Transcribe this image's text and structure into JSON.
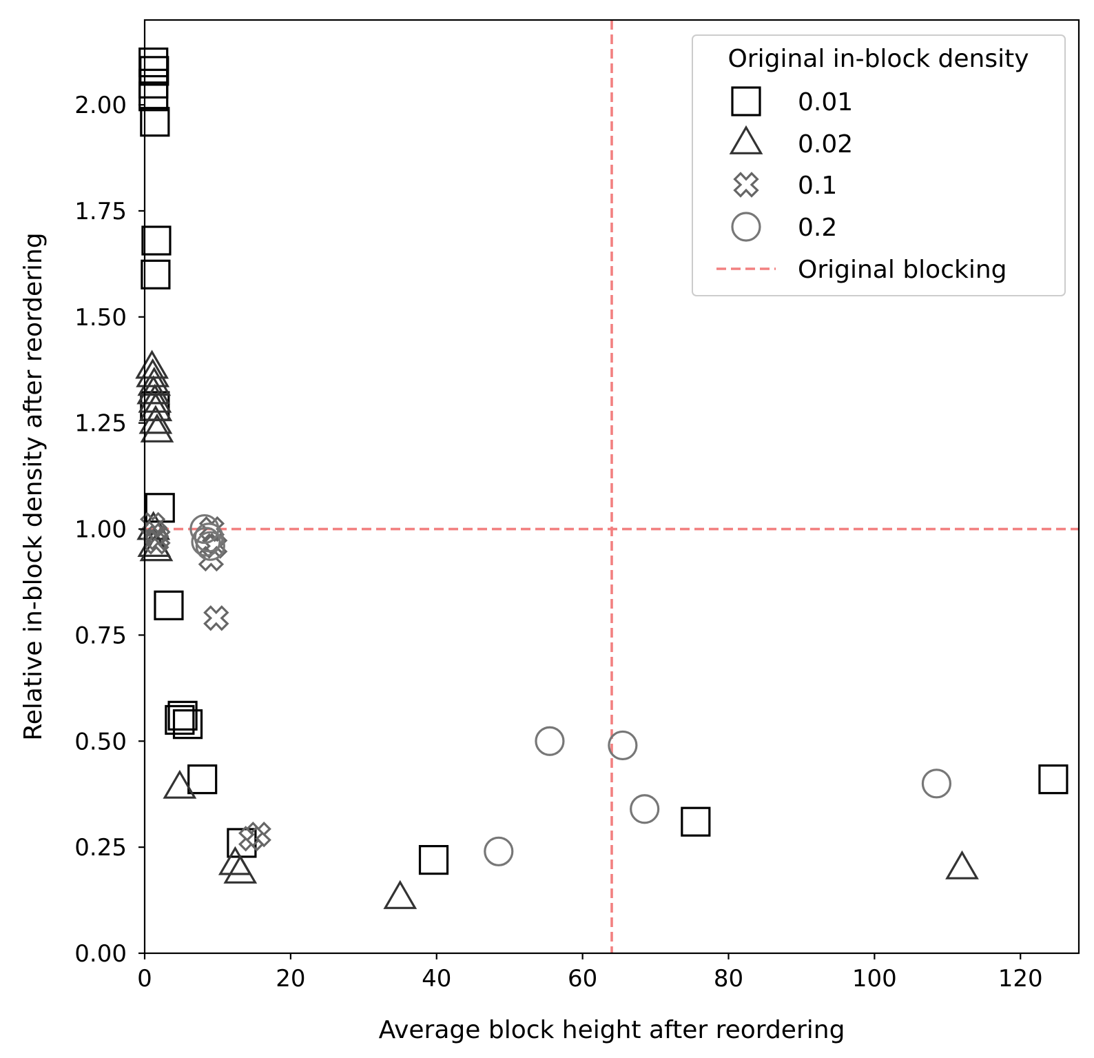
{
  "chart_data": {
    "type": "scatter",
    "xlabel": "Average block height after reordering",
    "ylabel": "Relative in-block density after reordering",
    "xlim": [
      0,
      128
    ],
    "ylim": [
      0,
      2.2
    ],
    "xticks": [
      0,
      20,
      40,
      60,
      80,
      100,
      120
    ],
    "xtick_labels": [
      "0",
      "20",
      "40",
      "60",
      "80",
      "100",
      "120"
    ],
    "yticks": [
      0,
      0.25,
      0.5,
      0.75,
      1.0,
      1.25,
      1.5,
      1.75,
      2.0
    ],
    "ytick_labels": [
      "0.00",
      "0.25",
      "0.50",
      "0.75",
      "1.00",
      "1.25",
      "1.50",
      "1.75",
      "2.00"
    ],
    "grid": false,
    "legend": {
      "title": "Original in-block density",
      "position": "top-right"
    },
    "series": [
      {
        "name": "0.01",
        "marker": "square",
        "color": "#000000",
        "points": [
          [
            1.2,
            2.1
          ],
          [
            1.3,
            2.08
          ],
          [
            1.2,
            2.05
          ],
          [
            1.2,
            2.02
          ],
          [
            1.4,
            1.96
          ],
          [
            1.6,
            1.68
          ],
          [
            1.5,
            1.6
          ],
          [
            1.4,
            1.29
          ],
          [
            2.1,
            1.05
          ],
          [
            3.3,
            0.82
          ],
          [
            5.2,
            0.56
          ],
          [
            5.9,
            0.54
          ],
          [
            4.8,
            0.55
          ],
          [
            7.9,
            0.41
          ],
          [
            13.3,
            0.26
          ],
          [
            39.6,
            0.22
          ],
          [
            75.5,
            0.31
          ],
          [
            124.5,
            0.41
          ]
        ]
      },
      {
        "name": "0.02",
        "marker": "triangle",
        "color": "#333333",
        "points": [
          [
            1.0,
            1.38
          ],
          [
            1.1,
            1.36
          ],
          [
            1.3,
            1.34
          ],
          [
            1.2,
            1.32
          ],
          [
            1.4,
            1.3
          ],
          [
            1.5,
            1.28
          ],
          [
            1.5,
            1.25
          ],
          [
            1.7,
            1.23
          ],
          [
            1.2,
            1.0
          ],
          [
            1.3,
            0.96
          ],
          [
            1.6,
            0.95
          ],
          [
            4.8,
            0.39
          ],
          [
            12.4,
            0.21
          ],
          [
            13.1,
            0.19
          ],
          [
            35.0,
            0.13
          ],
          [
            112.0,
            0.2
          ]
        ]
      },
      {
        "name": "0.1",
        "marker": "x",
        "color": "#666666",
        "points": [
          [
            1.1,
            1.01
          ],
          [
            1.4,
            0.99
          ],
          [
            1.6,
            0.97
          ],
          [
            1.8,
            0.98
          ],
          [
            9.2,
            1.0
          ],
          [
            9.6,
            0.96
          ],
          [
            9.1,
            0.93
          ],
          [
            9.8,
            0.79
          ],
          [
            14.6,
            0.27
          ],
          [
            15.6,
            0.28
          ]
        ]
      },
      {
        "name": "0.2",
        "marker": "circle",
        "color": "#777777",
        "points": [
          [
            8.2,
            1.0
          ],
          [
            8.8,
            0.98
          ],
          [
            8.4,
            0.97
          ],
          [
            9.0,
            0.96
          ],
          [
            48.5,
            0.24
          ],
          [
            55.5,
            0.5
          ],
          [
            65.5,
            0.49
          ],
          [
            68.5,
            0.34
          ],
          [
            108.5,
            0.4
          ]
        ]
      }
    ],
    "reference_lines": {
      "name": "Original blocking",
      "style": "dashed",
      "color": "#f28080",
      "x": 64,
      "y": 1.0
    }
  }
}
